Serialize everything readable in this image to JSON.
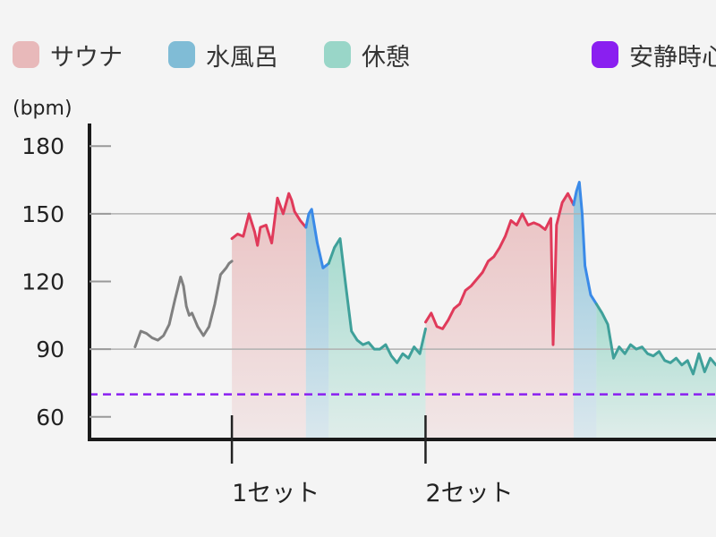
{
  "chart_data": {
    "type": "line",
    "title": "",
    "xlabel": "",
    "ylabel": "(bpm)",
    "ylim": [
      50,
      190
    ],
    "y_ticks": [
      "180",
      "150",
      "120",
      "90",
      "60"
    ],
    "grid_y": [
      90,
      150
    ],
    "x_unit": "min",
    "xlim": [
      0,
      110
    ],
    "legend": [
      {
        "key": "sauna",
        "name": "サウナ",
        "color": "#e8b9ba"
      },
      {
        "key": "cold",
        "name": "水風呂",
        "color": "#80bcd6"
      },
      {
        "key": "rest",
        "name": "休憩",
        "color": "#99d6c8"
      },
      {
        "key": "resting_hr",
        "name": "安静時心拍",
        "color": "#8a1ff0"
      }
    ],
    "resting_hr": 70,
    "x_axis_labels": [
      {
        "label": "1セット",
        "x": 25
      },
      {
        "label": "2セット",
        "x": 59
      }
    ],
    "segments": [
      {
        "type": "none",
        "x": [
          8,
          9,
          10,
          11,
          12,
          13,
          14,
          15,
          16,
          16.5,
          17,
          17.5,
          18,
          19,
          20,
          21,
          22,
          23,
          24,
          24.5,
          25
        ],
        "y": [
          91,
          98,
          97,
          95,
          94,
          96,
          101,
          112,
          122,
          118,
          109,
          105,
          106,
          100,
          96,
          100,
          110,
          123,
          126,
          128,
          129
        ]
      },
      {
        "type": "sauna",
        "x": [
          25,
          26,
          27,
          28,
          29,
          29.5,
          30,
          31,
          32,
          33,
          34,
          35,
          35.5,
          36,
          37,
          38
        ],
        "y": [
          139,
          141,
          140,
          150,
          142,
          136,
          144,
          145,
          137,
          157,
          150,
          159,
          156,
          151,
          147,
          144
        ]
      },
      {
        "type": "cold",
        "x": [
          38,
          38.5,
          39,
          40,
          41,
          42
        ],
        "y": [
          144,
          150,
          152,
          137,
          126,
          128
        ]
      },
      {
        "type": "rest",
        "x": [
          42,
          43,
          44,
          45,
          46,
          47,
          48,
          49,
          50,
          51,
          52,
          53,
          54,
          55,
          56,
          57,
          58,
          59
        ],
        "y": [
          128,
          135,
          139,
          118,
          98,
          94,
          92,
          93,
          90,
          90,
          92,
          87,
          84,
          88,
          86,
          91,
          88,
          99
        ]
      },
      {
        "type": "sauna",
        "x": [
          59,
          60,
          61,
          62,
          63,
          64,
          65,
          66,
          67,
          68,
          69,
          70,
          71,
          72,
          73,
          74,
          75,
          76,
          77,
          78,
          79,
          80,
          81,
          81.4,
          81.8,
          82,
          83,
          84,
          85
        ],
        "y": [
          102,
          106,
          100,
          99,
          103,
          108,
          110,
          116,
          118,
          121,
          124,
          129,
          131,
          135,
          140,
          147,
          145,
          150,
          145,
          146,
          145,
          143,
          148,
          92,
          125,
          145,
          155,
          159,
          154
        ]
      },
      {
        "type": "cold",
        "x": [
          85,
          85.5,
          86,
          86.5,
          87,
          88,
          89
        ],
        "y": [
          154,
          160,
          164,
          150,
          127,
          114,
          110
        ]
      },
      {
        "type": "rest",
        "x": [
          89,
          90,
          91,
          92,
          93,
          94,
          95,
          96,
          97,
          98,
          99,
          100,
          101,
          102,
          103,
          104,
          105,
          106,
          107,
          108,
          109,
          110
        ],
        "y": [
          110,
          106,
          101,
          86,
          91,
          88,
          92,
          90,
          91,
          88,
          87,
          89,
          85,
          84,
          86,
          83,
          85,
          79,
          88,
          80,
          86,
          83
        ]
      }
    ]
  }
}
